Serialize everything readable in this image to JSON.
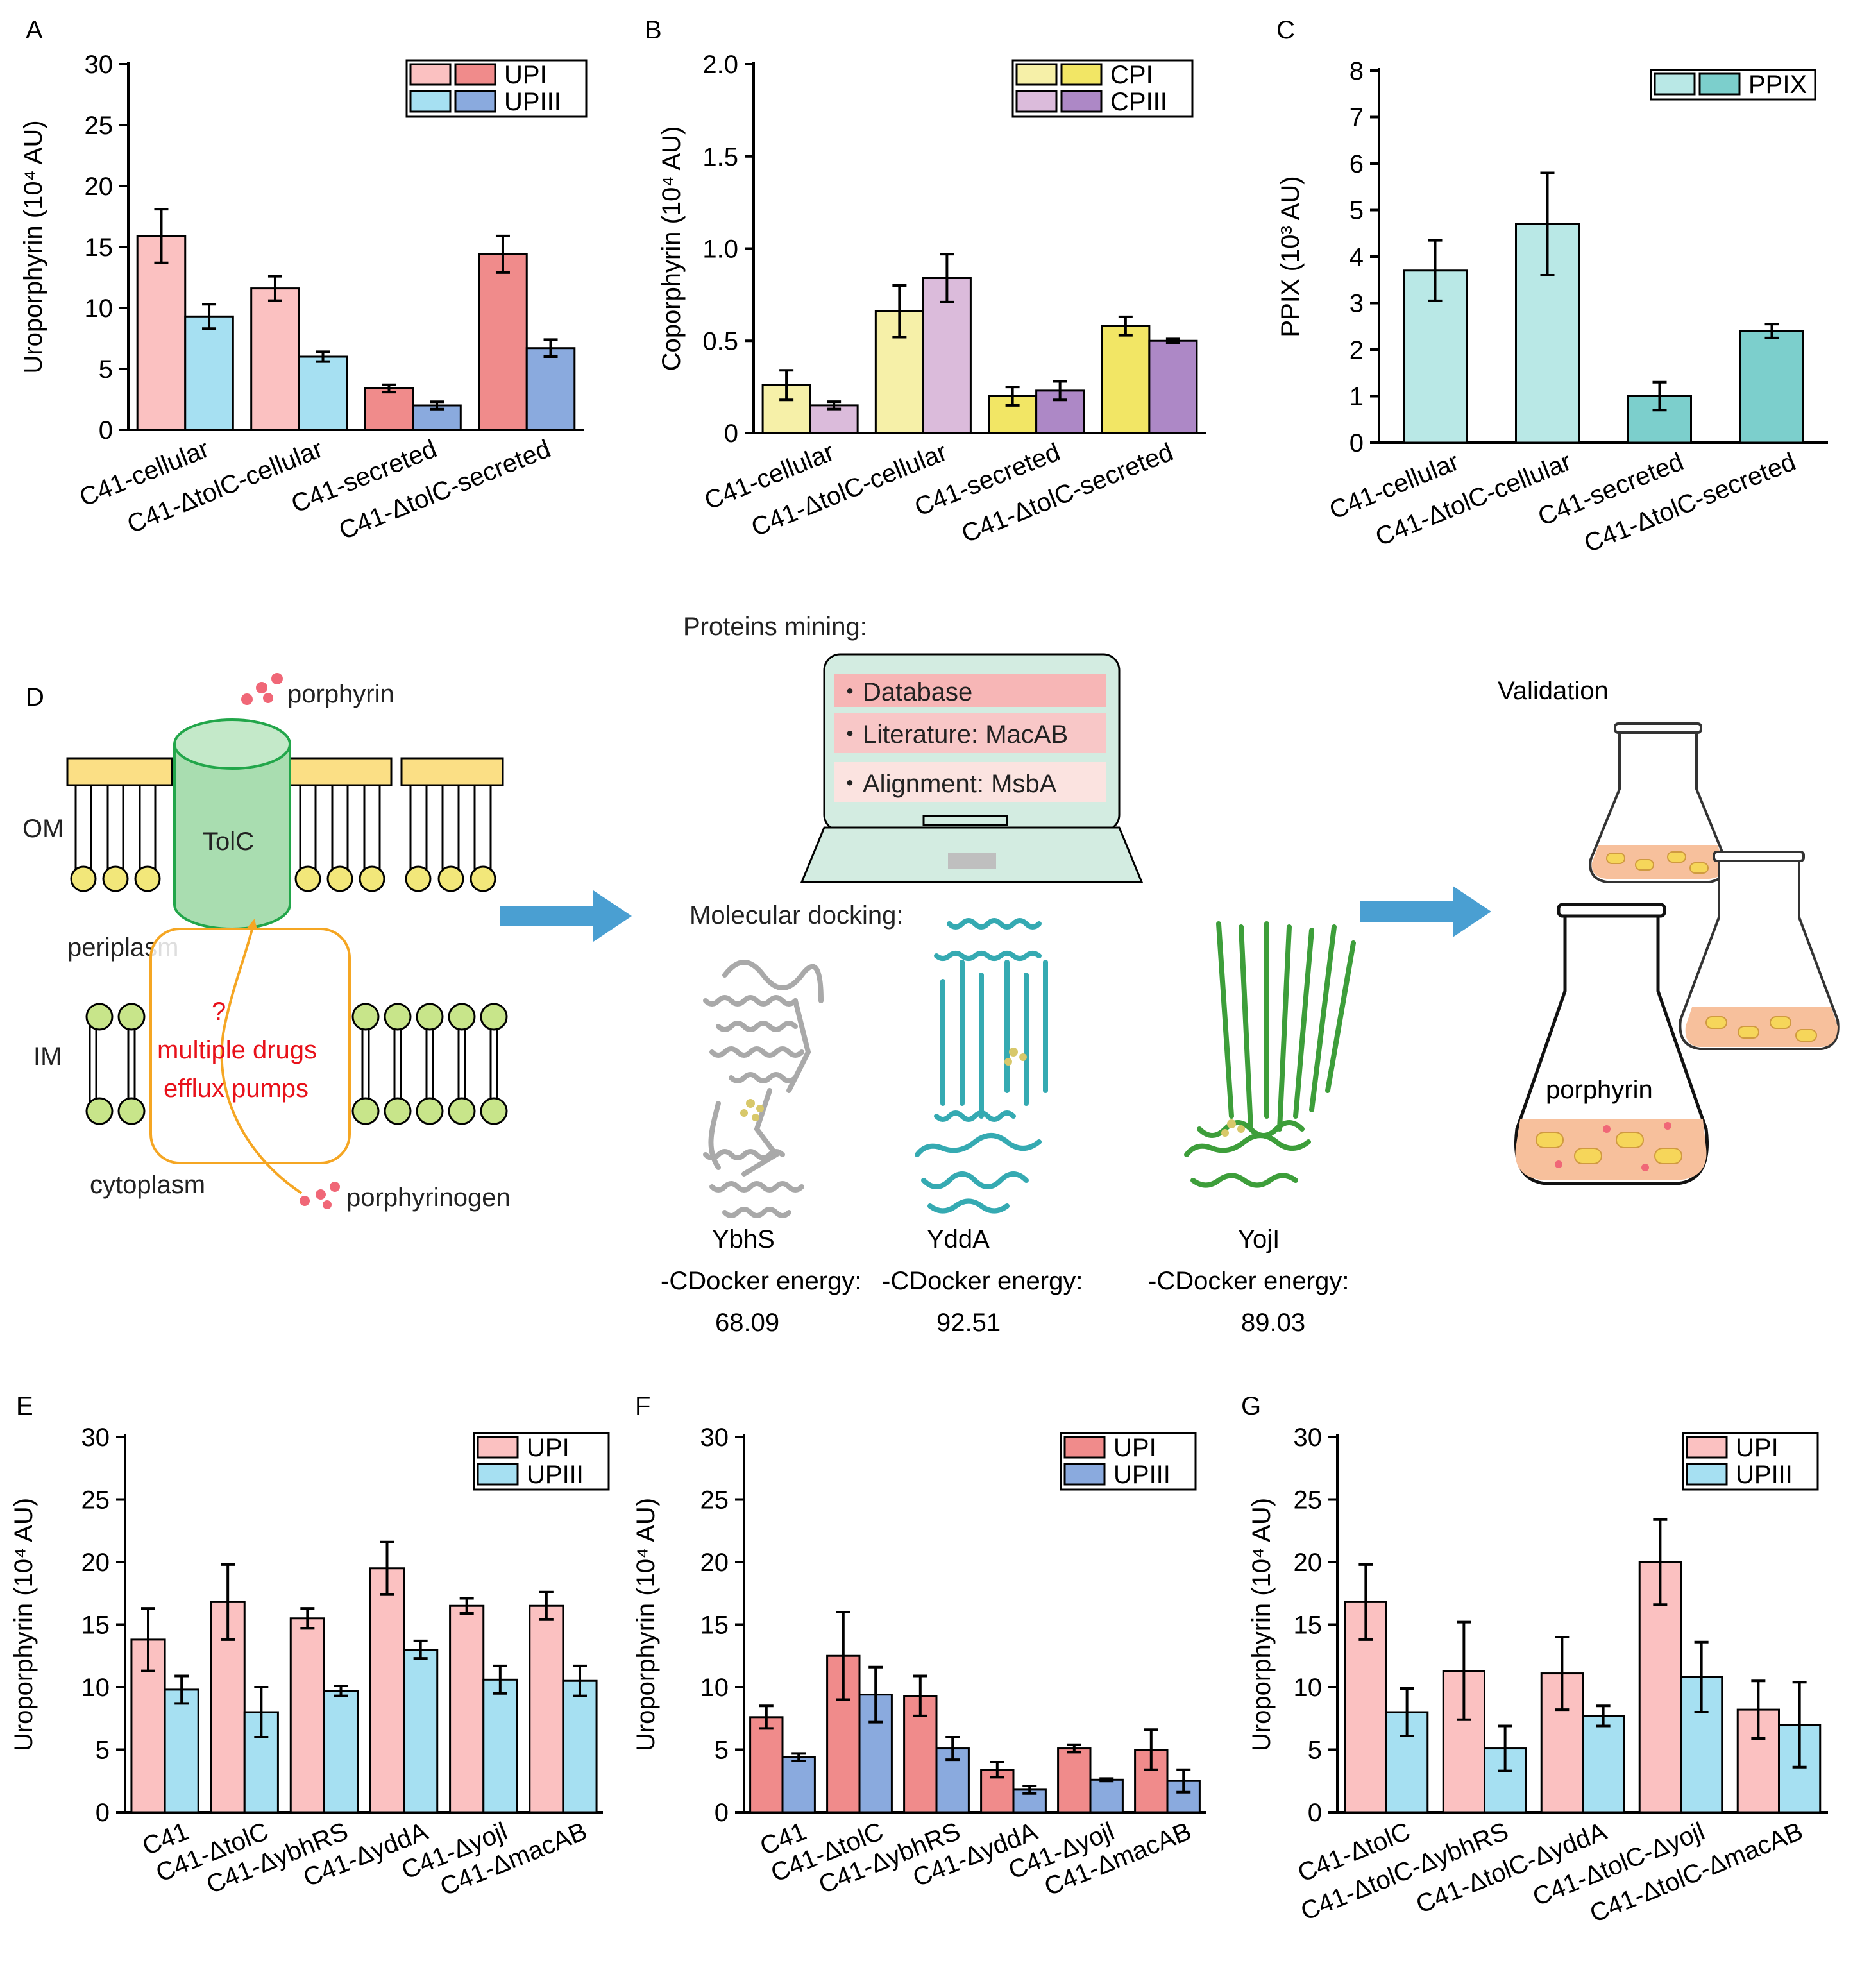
{
  "panel_letters": [
    "A",
    "B",
    "C",
    "D",
    "E",
    "F",
    "G"
  ],
  "chart_data": [
    {
      "id": "A",
      "type": "bar",
      "ylabel": "Uroporphyrin (10⁴ AU)",
      "ylim": [
        0,
        30
      ],
      "yticks": [
        0,
        5,
        10,
        15,
        20,
        25,
        30
      ],
      "categories": [
        "C41-cellular",
        "C41-ΔtolC-cellular",
        "C41-secreted",
        "C41-ΔtolC-secreted"
      ],
      "series": [
        {
          "name": "UPI",
          "values": [
            15.9,
            11.6,
            3.4,
            14.4
          ],
          "errors": [
            2.2,
            1.0,
            0.3,
            1.5
          ],
          "colors": [
            "#fbc1c1",
            "#fbc1c1",
            "#f08b8b",
            "#f08b8b"
          ]
        },
        {
          "name": "UPIII",
          "values": [
            9.3,
            6.0,
            2.0,
            6.7
          ],
          "errors": [
            1.0,
            0.4,
            0.3,
            0.7
          ],
          "colors": [
            "#a6e0f2",
            "#a6e0f2",
            "#8aaade",
            "#8aaade"
          ]
        }
      ],
      "legend": [
        {
          "label": "UPI",
          "colors": [
            "#fbc1c1",
            "#f08b8b"
          ]
        },
        {
          "label": "UPIII",
          "colors": [
            "#a6e0f2",
            "#8aaade"
          ]
        }
      ]
    },
    {
      "id": "B",
      "type": "bar",
      "ylabel": "Coporphyrin (10⁴ AU)",
      "ylim": [
        0,
        2.0
      ],
      "yticks": [
        "0",
        "0.5",
        "1.0",
        "1.5",
        "2.0"
      ],
      "categories": [
        "C41-cellular",
        "C41-ΔtolC-cellular",
        "C41-secreted",
        "C41-ΔtolC-secreted"
      ],
      "series": [
        {
          "name": "CPI",
          "values": [
            0.26,
            0.66,
            0.2,
            0.58
          ],
          "errors": [
            0.08,
            0.14,
            0.05,
            0.05
          ],
          "colors": [
            "#f6f0a8",
            "#f6f0a8",
            "#f2e665",
            "#f2e665"
          ]
        },
        {
          "name": "CPIII",
          "values": [
            0.15,
            0.84,
            0.23,
            0.5
          ],
          "errors": [
            0.02,
            0.13,
            0.05,
            0.01
          ],
          "colors": [
            "#dbbbdb",
            "#dbbbdb",
            "#ad88c6",
            "#ad88c6"
          ]
        }
      ],
      "legend": [
        {
          "label": "CPI",
          "colors": [
            "#f6f0a8",
            "#f2e665"
          ]
        },
        {
          "label": "CPIII",
          "colors": [
            "#dbbbdb",
            "#ad88c6"
          ]
        }
      ]
    },
    {
      "id": "C",
      "type": "bar",
      "ylabel": "PPIX (10³ AU)",
      "ylim": [
        0,
        8
      ],
      "yticks": [
        0,
        1,
        2,
        3,
        4,
        5,
        6,
        7,
        8
      ],
      "categories": [
        "C41-cellular",
        "C41-ΔtolC-cellular",
        "C41-secreted",
        "C41-ΔtolC-secreted"
      ],
      "series": [
        {
          "name": "PPIX",
          "values": [
            3.7,
            4.7,
            1.0,
            2.4
          ],
          "errors": [
            0.65,
            1.1,
            0.3,
            0.15
          ],
          "colors": [
            "#b9e8e6",
            "#b9e8e6",
            "#7ccfcc",
            "#7ccfcc"
          ]
        }
      ],
      "legend": [
        {
          "label": "PPIX",
          "colors": [
            "#b9e8e6",
            "#7ccfcc"
          ]
        }
      ]
    },
    {
      "id": "E",
      "type": "bar",
      "ylabel": "Uroporphyrin (10⁴ AU)",
      "ylim": [
        0,
        30
      ],
      "yticks": [
        0,
        5,
        10,
        15,
        20,
        25,
        30
      ],
      "categories": [
        "C41",
        "C41-ΔtolC",
        "C41-ΔybhRS",
        "C41-ΔyddA",
        "C41-Δyojl",
        "C41-ΔmacAB"
      ],
      "series": [
        {
          "name": "UPI",
          "values": [
            13.8,
            16.8,
            15.5,
            19.5,
            16.5,
            16.5
          ],
          "errors": [
            2.5,
            3.0,
            0.8,
            2.1,
            0.6,
            1.1
          ],
          "colors": [
            "#fbc1c1",
            "#fbc1c1",
            "#fbc1c1",
            "#fbc1c1",
            "#fbc1c1",
            "#fbc1c1"
          ]
        },
        {
          "name": "UPIII",
          "values": [
            9.8,
            8.0,
            9.7,
            13.0,
            10.6,
            10.5
          ],
          "errors": [
            1.1,
            2.0,
            0.4,
            0.7,
            1.1,
            1.2
          ],
          "colors": [
            "#a6e0f2",
            "#a6e0f2",
            "#a6e0f2",
            "#a6e0f2",
            "#a6e0f2",
            "#a6e0f2"
          ]
        }
      ],
      "legend": [
        {
          "label": "UPI",
          "colors": [
            "#fbc1c1"
          ]
        },
        {
          "label": "UPIII",
          "colors": [
            "#a6e0f2"
          ]
        }
      ]
    },
    {
      "id": "F",
      "type": "bar",
      "ylabel": "Uroporphyrin (10⁴ AU)",
      "ylim": [
        0,
        30
      ],
      "yticks": [
        0,
        5,
        10,
        15,
        20,
        25,
        30
      ],
      "categories": [
        "C41",
        "C41-ΔtolC",
        "C41-ΔybhRS",
        "C41-ΔyddA",
        "C41-Δyojl",
        "C41-ΔmacAB"
      ],
      "series": [
        {
          "name": "UPI",
          "values": [
            7.6,
            12.5,
            9.3,
            3.4,
            5.1,
            5.0
          ],
          "errors": [
            0.9,
            3.5,
            1.6,
            0.6,
            0.3,
            1.6
          ],
          "colors": [
            "#f08b8b",
            "#f08b8b",
            "#f08b8b",
            "#f08b8b",
            "#f08b8b",
            "#f08b8b"
          ]
        },
        {
          "name": "UPIII",
          "values": [
            4.4,
            9.4,
            5.1,
            1.8,
            2.6,
            2.5
          ],
          "errors": [
            0.3,
            2.2,
            0.9,
            0.3,
            0.1,
            0.9
          ],
          "colors": [
            "#8aaade",
            "#8aaade",
            "#8aaade",
            "#8aaade",
            "#8aaade",
            "#8aaade"
          ]
        }
      ],
      "legend": [
        {
          "label": "UPI",
          "colors": [
            "#f08b8b"
          ]
        },
        {
          "label": "UPIII",
          "colors": [
            "#8aaade"
          ]
        }
      ]
    },
    {
      "id": "G",
      "type": "bar",
      "ylabel": "Uroporphyrin (10⁴ AU)",
      "ylim": [
        0,
        30
      ],
      "yticks": [
        0,
        5,
        10,
        15,
        20,
        25,
        30
      ],
      "categories": [
        "C41-ΔtolC",
        "C41-ΔtolC-ΔybhRS",
        "C41-ΔtolC-ΔyddA",
        "C41-ΔtolC-Δyojl",
        "C41-ΔtolC-ΔmacAB"
      ],
      "series": [
        {
          "name": "UPI",
          "values": [
            16.8,
            11.3,
            11.1,
            20.0,
            8.2
          ],
          "errors": [
            3.0,
            3.9,
            2.9,
            3.4,
            2.3
          ],
          "colors": [
            "#fbc1c1",
            "#fbc1c1",
            "#fbc1c1",
            "#fbc1c1",
            "#fbc1c1"
          ]
        },
        {
          "name": "UPIII",
          "values": [
            8.0,
            5.1,
            7.7,
            10.8,
            7.0
          ],
          "errors": [
            1.9,
            1.8,
            0.8,
            2.8,
            3.4
          ],
          "colors": [
            "#a6e0f2",
            "#a6e0f2",
            "#a6e0f2",
            "#a6e0f2",
            "#a6e0f2"
          ]
        }
      ],
      "legend": [
        {
          "label": "UPI",
          "colors": [
            "#fbc1c1"
          ]
        },
        {
          "label": "UPIII",
          "colors": [
            "#a6e0f2"
          ]
        }
      ]
    }
  ],
  "diagram": {
    "porphyrin": "porphyrin",
    "om": "OM",
    "tolc": "TolC",
    "periplasm": "periplasm",
    "im": "IM",
    "question": "?",
    "pump_line1": "multiple drugs",
    "pump_line2": "efflux pumps",
    "cytoplasm": "cytoplasm",
    "porphyrinogen": "porphyrinogen",
    "mining_title": "Proteins mining:",
    "mining_items": [
      "・Database",
      "・Literature: MacAB",
      "・Alignment: MsbA"
    ],
    "docking_title": "Molecular docking:",
    "proteins": [
      {
        "name": "YbhS",
        "energy_label": "-CDocker energy:",
        "energy": "68.09",
        "color": "#a9a9a9"
      },
      {
        "name": "YddA",
        "energy_label": "-CDocker energy:",
        "energy": "92.51",
        "color": "#35aab2"
      },
      {
        "name": "YojI",
        "energy_label": "-CDocker energy:",
        "energy": "89.03",
        "color": "#3d9e3a"
      }
    ],
    "validation": "Validation",
    "flask_label": "porphyrin"
  },
  "colors": {
    "membrane_head": "#f2e77a",
    "outer_leaflet": "#fbdf85",
    "tolc_fill": "#a9ddb0",
    "tolc_stroke": "#22a64a",
    "im_head": "#c8e58a",
    "pump": "#f5a623",
    "arrow": "#4a9fd2",
    "laptop": "#d3ece1",
    "culture": "#f7c09c",
    "cell": "#f6d65a"
  }
}
